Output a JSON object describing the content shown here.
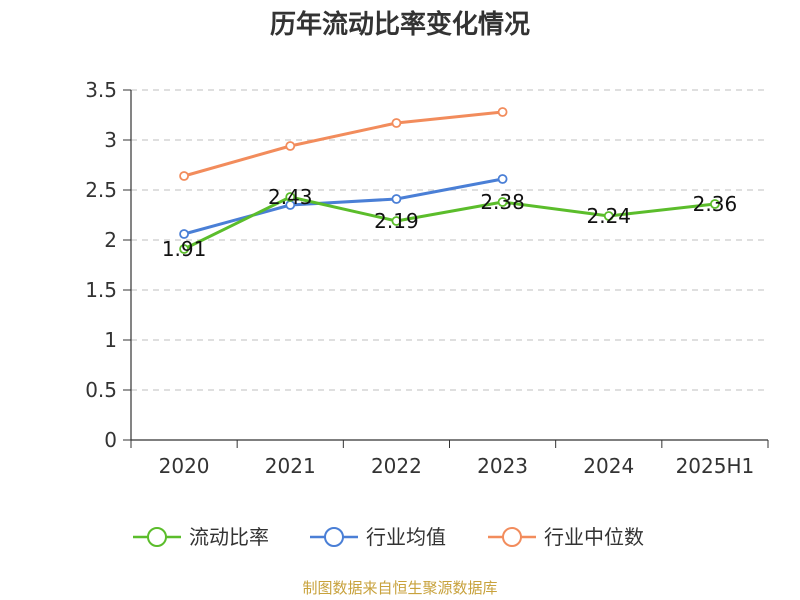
{
  "chart_data": {
    "type": "line",
    "title": "历年流动比率变化情况",
    "xlabel": "",
    "ylabel": "",
    "categories": [
      "2020",
      "2021",
      "2022",
      "2023",
      "2024",
      "2025H1"
    ],
    "ylim": [
      0,
      3.5
    ],
    "yticks": [
      "0",
      "0.5",
      "1",
      "1.5",
      "2",
      "2.5",
      "3",
      "3.5"
    ],
    "grid": true,
    "legend_position": "bottom",
    "series": [
      {
        "name": "流动比率",
        "color": "#5bbd2b",
        "values": [
          1.91,
          2.43,
          2.19,
          2.38,
          2.24,
          2.36
        ],
        "labels": [
          "1.91",
          "2.43",
          "2.19",
          "2.38",
          "2.24",
          "2.36"
        ]
      },
      {
        "name": "行业均值",
        "color": "#4a7fd6",
        "values": [
          2.06,
          2.35,
          2.41,
          2.61,
          null,
          null
        ]
      },
      {
        "name": "行业中位数",
        "color": "#f28c5c",
        "values": [
          2.64,
          2.94,
          3.17,
          3.28,
          null,
          null
        ]
      }
    ],
    "source": "制图数据来自恒生聚源数据库"
  }
}
